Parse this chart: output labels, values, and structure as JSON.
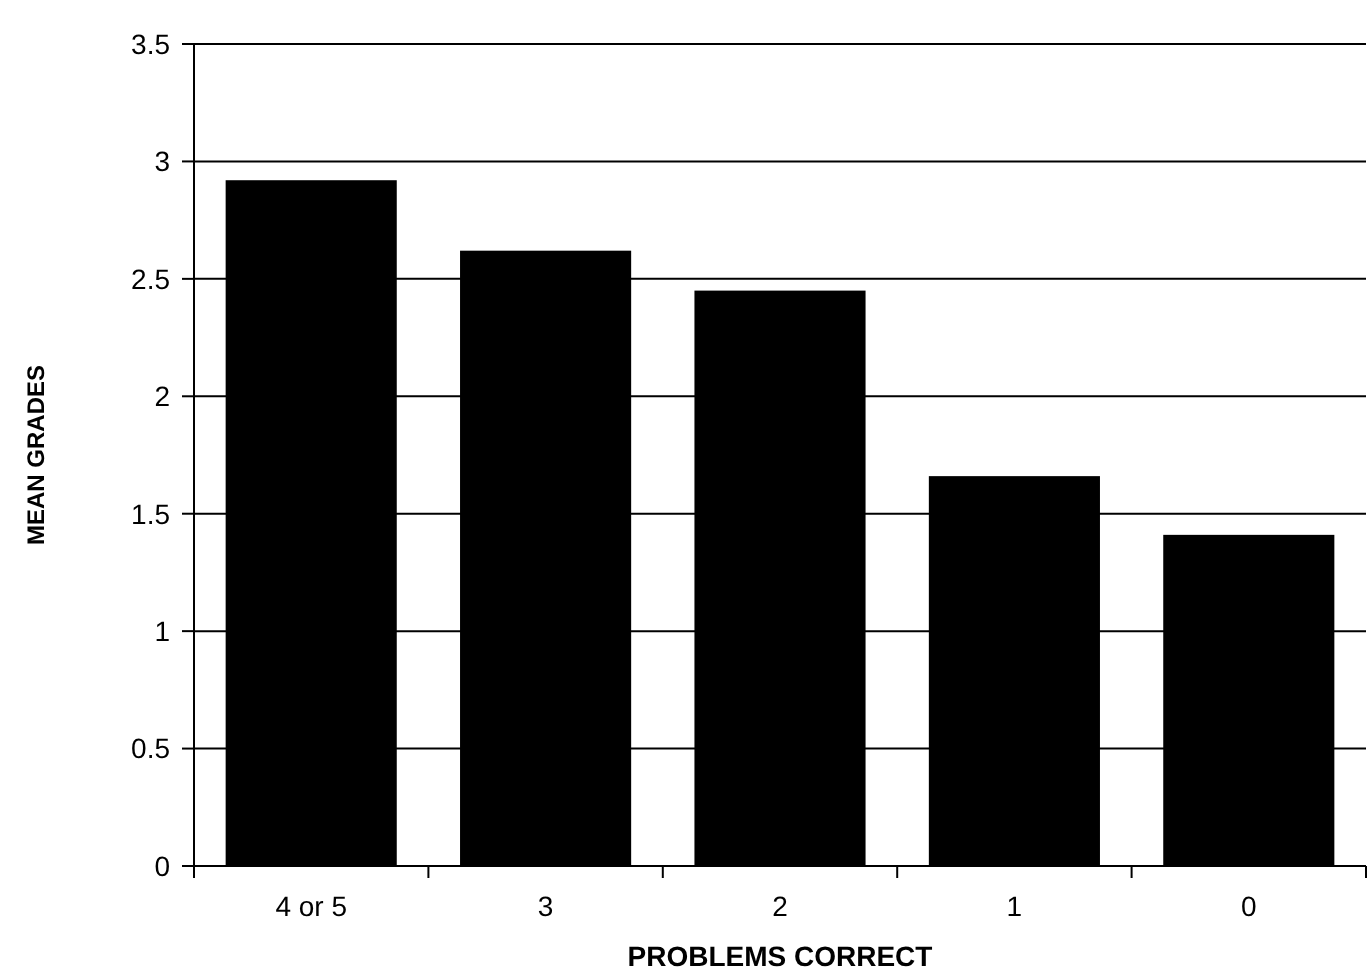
{
  "chart_data": {
    "type": "bar",
    "xlabel": "PROBLEMS CORRECT",
    "ylabel": "MEAN GRADES",
    "categories": [
      "4 or 5",
      "3",
      "2",
      "1",
      "0"
    ],
    "values": [
      2.92,
      2.62,
      2.45,
      1.66,
      1.41
    ],
    "color": "#000000",
    "ylim": [
      0,
      3.5
    ],
    "yticks": [
      0,
      0.5,
      1,
      1.5,
      2,
      2.5,
      3,
      3.5
    ],
    "grid": "y"
  }
}
